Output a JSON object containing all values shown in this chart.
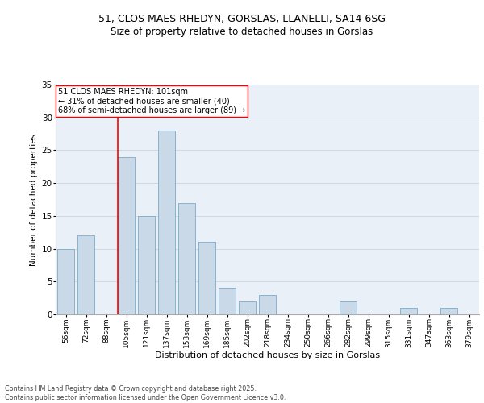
{
  "title1": "51, CLOS MAES RHEDYN, GORSLAS, LLANELLI, SA14 6SG",
  "title2": "Size of property relative to detached houses in Gorslas",
  "xlabel": "Distribution of detached houses by size in Gorslas",
  "ylabel": "Number of detached properties",
  "categories": [
    "56sqm",
    "72sqm",
    "88sqm",
    "105sqm",
    "121sqm",
    "137sqm",
    "153sqm",
    "169sqm",
    "185sqm",
    "202sqm",
    "218sqm",
    "234sqm",
    "250sqm",
    "266sqm",
    "282sqm",
    "299sqm",
    "315sqm",
    "331sqm",
    "347sqm",
    "363sqm",
    "379sqm"
  ],
  "values": [
    10,
    12,
    0,
    24,
    15,
    28,
    17,
    11,
    4,
    2,
    3,
    0,
    0,
    0,
    2,
    0,
    0,
    1,
    0,
    1,
    0
  ],
  "bar_color": "#c9d9e8",
  "bar_edge_color": "#7aaac8",
  "grid_color": "#d0d8e8",
  "bg_color": "#eaf0f8",
  "vline_color": "red",
  "vline_pos": 2.58,
  "annotation_text": "51 CLOS MAES RHEDYN: 101sqm\n← 31% of detached houses are smaller (40)\n68% of semi-detached houses are larger (89) →",
  "annotation_box_color": "white",
  "annotation_box_edge": "red",
  "footer": "Contains HM Land Registry data © Crown copyright and database right 2025.\nContains public sector information licensed under the Open Government Licence v3.0.",
  "ylim": [
    0,
    35
  ],
  "yticks": [
    0,
    5,
    10,
    15,
    20,
    25,
    30,
    35
  ]
}
